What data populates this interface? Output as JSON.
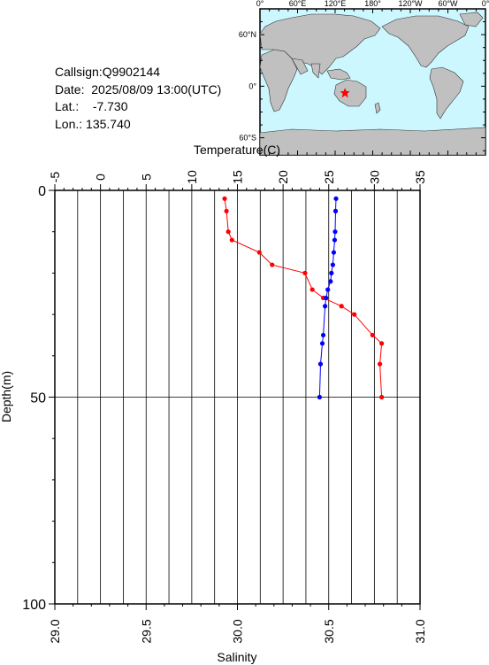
{
  "station": {
    "callsign_label": "Callsign:",
    "callsign": "Q9902144",
    "date_label": "Date:",
    "date": "2025/08/09 13:00(UTC)",
    "lat_label": "Lat.:",
    "lat": "-7.730",
    "lon_label": "Lon.:",
    "lon": "135.740"
  },
  "map": {
    "top_labels": [
      "0°",
      "60°E",
      "120°E",
      "180°",
      "120°W",
      "60°W",
      "0°"
    ],
    "left_labels": [
      "60°N",
      "0°",
      "60°S"
    ],
    "ocean_color": "#ccf7ff",
    "land_color": "#c0c0c0",
    "marker_color": "#ff0000",
    "marker_lat": -7.73,
    "marker_lon": 135.74
  },
  "chart_data": {
    "type": "line",
    "ylabel": "Depth(m)",
    "ylim": [
      0,
      100
    ],
    "y_ticks": [
      0,
      50,
      100
    ],
    "top_axis": {
      "label": "Temperature(C)",
      "lim": [
        -5,
        35
      ],
      "ticks": [
        -5,
        0,
        5,
        10,
        15,
        20,
        25,
        30,
        35
      ]
    },
    "bottom_axis": {
      "label": "Salinity",
      "lim": [
        29.0,
        31.0
      ],
      "ticks": [
        "29.0",
        "29.5",
        "30.0",
        "30.5",
        "31.0"
      ]
    },
    "grid": "vertical lines every 2.5 C, horizontal line at 50 m",
    "series": [
      {
        "variable": "salinity",
        "axis": "bottom",
        "color": "#ff0000",
        "points": [
          {
            "x": 29.93,
            "depth": 2
          },
          {
            "x": 29.94,
            "depth": 5
          },
          {
            "x": 29.95,
            "depth": 10
          },
          {
            "x": 29.97,
            "depth": 12
          },
          {
            "x": 30.12,
            "depth": 15
          },
          {
            "x": 30.19,
            "depth": 18
          },
          {
            "x": 30.37,
            "depth": 20
          },
          {
            "x": 30.41,
            "depth": 24
          },
          {
            "x": 30.47,
            "depth": 26
          },
          {
            "x": 30.57,
            "depth": 28
          },
          {
            "x": 30.64,
            "depth": 30
          },
          {
            "x": 30.74,
            "depth": 35
          },
          {
            "x": 30.79,
            "depth": 37
          },
          {
            "x": 30.78,
            "depth": 42
          },
          {
            "x": 30.79,
            "depth": 50
          }
        ]
      },
      {
        "variable": "temperature",
        "axis": "top",
        "color": "#0000ff",
        "points": [
          {
            "x": 25.8,
            "depth": 2
          },
          {
            "x": 25.75,
            "depth": 5
          },
          {
            "x": 25.7,
            "depth": 10
          },
          {
            "x": 25.65,
            "depth": 12
          },
          {
            "x": 25.55,
            "depth": 15
          },
          {
            "x": 25.45,
            "depth": 18
          },
          {
            "x": 25.3,
            "depth": 20
          },
          {
            "x": 25.2,
            "depth": 22
          },
          {
            "x": 24.9,
            "depth": 24
          },
          {
            "x": 24.7,
            "depth": 26
          },
          {
            "x": 24.6,
            "depth": 28
          },
          {
            "x": 24.4,
            "depth": 35
          },
          {
            "x": 24.3,
            "depth": 37
          },
          {
            "x": 24.1,
            "depth": 42
          },
          {
            "x": 24.0,
            "depth": 50
          }
        ]
      }
    ]
  }
}
